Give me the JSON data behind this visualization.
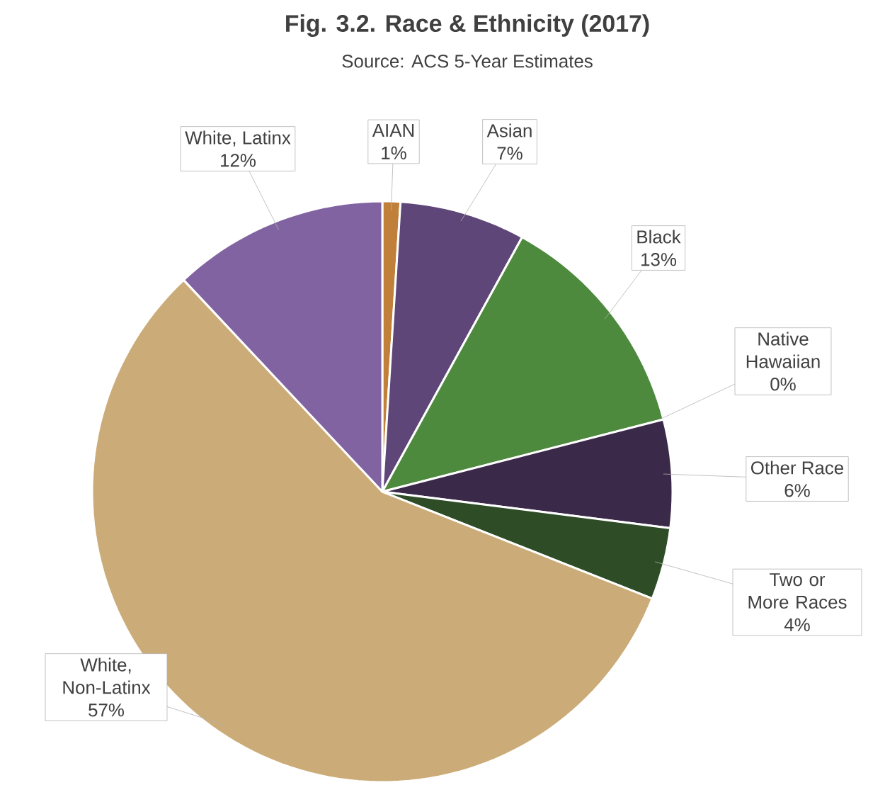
{
  "chart_data": {
    "type": "pie",
    "title": "Fig. 3.2. Race & Ethnicity (2017)",
    "subtitle": "Source: ACS 5-Year Estimates",
    "categories": [
      "AIAN",
      "Asian",
      "Black",
      "Native Hawaiian",
      "Other Race",
      "Two or More Races",
      "White, Non-Latinx",
      "White, Latinx"
    ],
    "values": [
      1,
      7,
      13,
      0,
      6,
      4,
      57,
      12
    ],
    "value_labels": [
      "1%",
      "7%",
      "13%",
      "0%",
      "6%",
      "4%",
      "57%",
      "12%"
    ],
    "colors": [
      "#c0803a",
      "#5f4678",
      "#4e8a3e",
      "#9b86b8",
      "#3a2948",
      "#2e4d27",
      "#cbab77",
      "#8063a0"
    ]
  }
}
